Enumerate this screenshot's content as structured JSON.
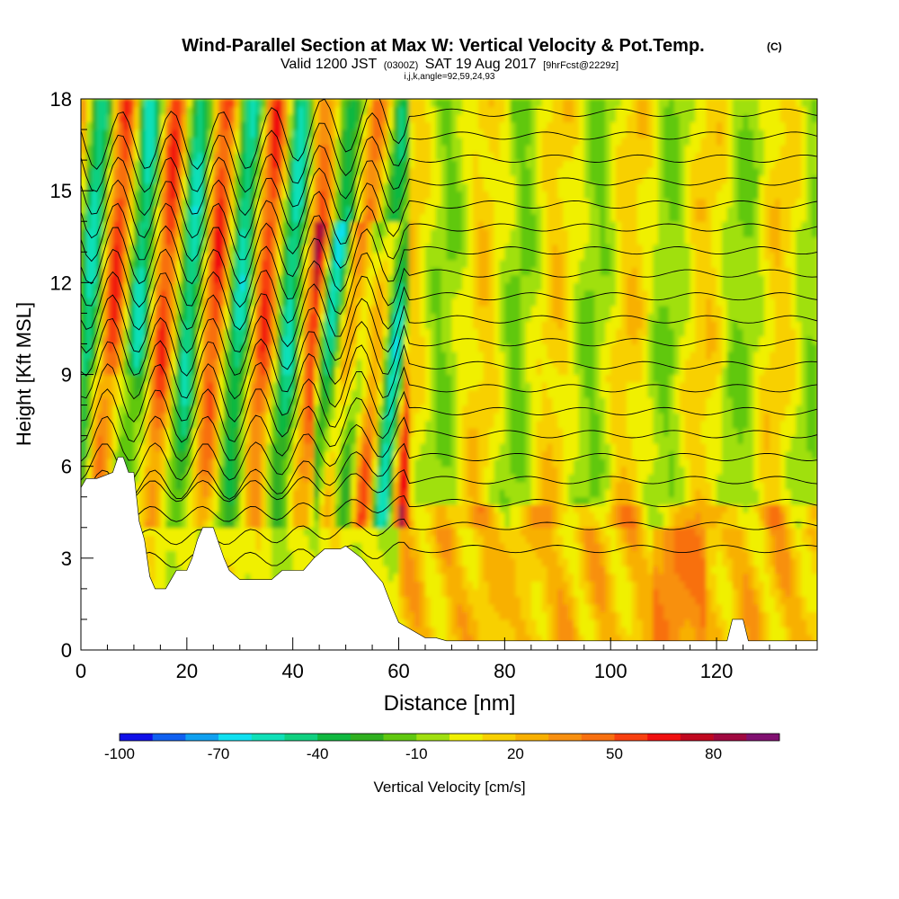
{
  "header": {
    "title": "Wind-Parallel Section at Max W: Vertical Velocity & Pot.Temp.",
    "title_tag": "(C)",
    "valid_a": "Valid 1200 JST",
    "valid_b": "(0300Z)",
    "valid_c": "SAT 19 Aug 2017",
    "valid_d": "[9hrFcst@2229z]",
    "subtitle": "i,j,k,angle=92,59,24,93"
  },
  "chart_data": {
    "type": "heatmap",
    "xlabel": "Distance [nm]",
    "ylabel": "Height [Kft MSL]",
    "xlim": [
      0,
      139
    ],
    "ylim": [
      0,
      18
    ],
    "xticks": [
      0,
      20,
      40,
      60,
      80,
      100,
      120
    ],
    "yticks": [
      0,
      3,
      6,
      9,
      12,
      15,
      18
    ],
    "colorbar": {
      "label": "Vertical Velocity [cm/s]",
      "tick_values": [
        -100,
        -70,
        -40,
        -10,
        20,
        50,
        80
      ],
      "tick_labels": [
        "-100",
        "-70",
        "-40",
        "-10",
        "20",
        "50",
        "80"
      ],
      "levels": [
        -100,
        -90,
        -80,
        -70,
        -60,
        -50,
        -40,
        -30,
        -20,
        -10,
        0,
        10,
        20,
        30,
        40,
        50,
        60,
        70,
        80,
        90,
        100
      ],
      "colors": [
        "#1010e8",
        "#1060f0",
        "#10a0f0",
        "#10e0f0",
        "#10e0b8",
        "#10d080",
        "#10b840",
        "#30b020",
        "#60c810",
        "#a0e010",
        "#f0f000",
        "#f8d000",
        "#f8b000",
        "#f89010",
        "#f87010",
        "#f84010",
        "#f01010",
        "#c00820",
        "#a00840",
        "#801070"
      ]
    },
    "terrain_kft": [
      [
        0,
        5.3
      ],
      [
        1,
        5.6
      ],
      [
        3,
        5.6
      ],
      [
        6,
        5.8
      ],
      [
        7,
        6.3
      ],
      [
        8,
        6.3
      ],
      [
        9,
        5.8
      ],
      [
        10,
        5.8
      ],
      [
        11,
        4.2
      ],
      [
        12,
        3.6
      ],
      [
        13,
        2.4
      ],
      [
        14,
        2.0
      ],
      [
        16,
        2.0
      ],
      [
        17,
        2.3
      ],
      [
        18,
        2.6
      ],
      [
        20,
        2.6
      ],
      [
        21,
        3.0
      ],
      [
        22,
        3.6
      ],
      [
        23,
        4.0
      ],
      [
        25,
        4.0
      ],
      [
        26,
        3.5
      ],
      [
        27,
        3.0
      ],
      [
        28,
        2.6
      ],
      [
        30,
        2.3
      ],
      [
        36,
        2.3
      ],
      [
        38,
        2.6
      ],
      [
        42,
        2.6
      ],
      [
        44,
        3.0
      ],
      [
        46,
        3.3
      ],
      [
        49,
        3.3
      ],
      [
        50,
        3.4
      ],
      [
        53,
        3.0
      ],
      [
        55,
        2.6
      ],
      [
        57,
        2.2
      ],
      [
        59,
        1.3
      ],
      [
        60,
        0.9
      ],
      [
        63,
        0.6
      ],
      [
        65,
        0.4
      ],
      [
        67,
        0.4
      ],
      [
        69,
        0.3
      ],
      [
        122,
        0.3
      ],
      [
        123,
        1.0
      ],
      [
        125,
        1.0
      ],
      [
        126,
        0.3
      ],
      [
        139,
        0.3
      ]
    ]
  }
}
